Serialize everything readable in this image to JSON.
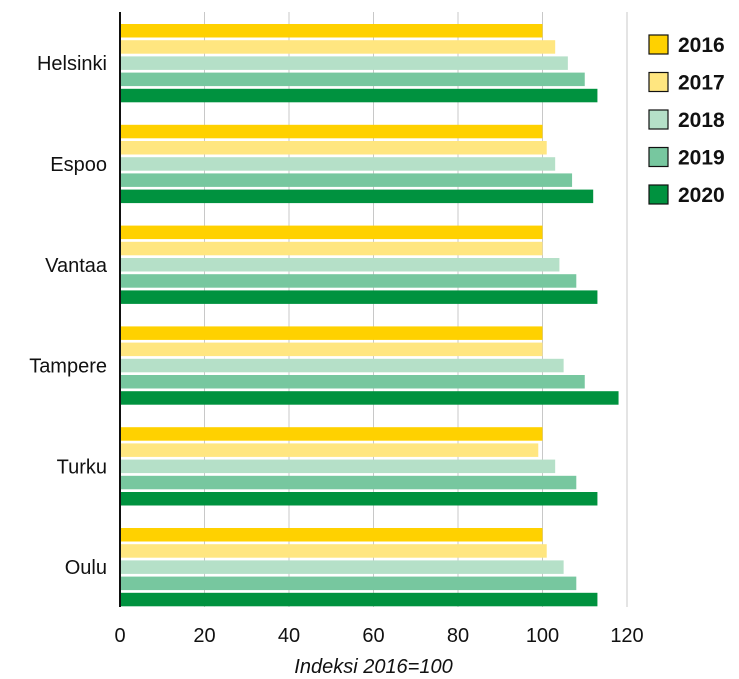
{
  "chart_data": {
    "type": "bar",
    "orientation": "horizontal",
    "title": "",
    "xlabel": "Indeksi 2016=100",
    "ylabel": "",
    "xlim": [
      0,
      120
    ],
    "x_ticks": [
      "0",
      "20",
      "40",
      "60",
      "80",
      "100",
      "120"
    ],
    "grid": "vertical",
    "legend_position": "top-right",
    "categories": [
      "Helsinki",
      "Espoo",
      "Vantaa",
      "Tampere",
      "Turku",
      "Oulu"
    ],
    "series": [
      {
        "name": "2016",
        "color": "#FFD100",
        "values": [
          100,
          100,
          100,
          100,
          100,
          100
        ]
      },
      {
        "name": "2017",
        "color": "#FFE680",
        "values": [
          103,
          101,
          100,
          100,
          99,
          101
        ]
      },
      {
        "name": "2018",
        "color": "#B5E0C8",
        "values": [
          106,
          103,
          104,
          105,
          103,
          105
        ]
      },
      {
        "name": "2019",
        "color": "#77C79F",
        "values": [
          110,
          107,
          108,
          110,
          108,
          108
        ]
      },
      {
        "name": "2020",
        "color": "#00923F",
        "values": [
          113,
          112,
          113,
          118,
          113,
          113
        ]
      }
    ]
  }
}
